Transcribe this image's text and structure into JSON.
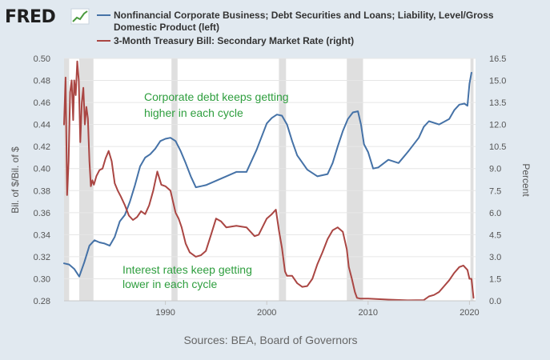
{
  "header": {
    "logo_text": "FRED",
    "logo_icon": "fred-chart-icon"
  },
  "chart_data": {
    "type": "line",
    "legend": [
      {
        "name_lines": [
          "Nonfinancial Corporate Business; Debt Securities and Loans; Liability, Level/Gross",
          "Domestic Product (left)"
        ],
        "color": "#4572a7",
        "axis": "left"
      },
      {
        "name_lines": [
          "3-Month Treasury Bill: Secondary Market Rate (right)"
        ],
        "color": "#aa4643",
        "axis": "right"
      }
    ],
    "ylabel_left": "Bil. of $/Bil. of $",
    "ylabel_right": "Percent",
    "ylim_left": [
      0.28,
      0.5
    ],
    "ylim_right": [
      0.0,
      16.5
    ],
    "xlim": [
      1980.0,
      2020.6
    ],
    "xticks": [
      1990,
      2000,
      2010,
      2020
    ],
    "yticks_left": [
      "0.28",
      "0.30",
      "0.32",
      "0.34",
      "0.36",
      "0.38",
      "0.40",
      "0.42",
      "0.44",
      "0.46",
      "0.48",
      "0.50"
    ],
    "yticks_right": [
      "0.0",
      "1.5",
      "3.0",
      "4.5",
      "6.0",
      "7.5",
      "9.0",
      "10.5",
      "12.0",
      "13.5",
      "15.0",
      "16.5"
    ],
    "recessions": [
      [
        1980.0,
        1980.5
      ],
      [
        1981.5,
        1982.9
      ],
      [
        1990.6,
        1991.2
      ],
      [
        2001.2,
        2001.9
      ],
      [
        2007.9,
        2009.5
      ],
      [
        2020.1,
        2020.4
      ]
    ],
    "series": [
      {
        "name": "Nonfinancial Corporate Business; Debt Securities and Loans; Liability, Level/Gross Domestic Product (left)",
        "axis": "left",
        "color": "#4572a7",
        "x": [
          1980.0,
          1980.5,
          1981.0,
          1981.5,
          1982.0,
          1982.5,
          1983.0,
          1983.5,
          1984.0,
          1984.5,
          1985.0,
          1985.5,
          1986.0,
          1986.5,
          1987.0,
          1987.5,
          1988.0,
          1988.5,
          1989.0,
          1989.5,
          1990.0,
          1990.5,
          1991.0,
          1991.5,
          1992.0,
          1992.5,
          1993.0,
          1993.5,
          1994.0,
          1995.0,
          1996.0,
          1997.0,
          1998.0,
          1999.0,
          2000.0,
          2000.5,
          2001.0,
          2001.5,
          2002.0,
          2002.5,
          2003.0,
          2004.0,
          2005.0,
          2006.0,
          2006.5,
          2007.0,
          2007.5,
          2008.0,
          2008.5,
          2009.0,
          2009.3,
          2009.6,
          2010.0,
          2010.5,
          2011.0,
          2012.0,
          2013.0,
          2014.0,
          2015.0,
          2015.5,
          2016.0,
          2017.0,
          2018.0,
          2018.5,
          2019.0,
          2019.5,
          2019.8,
          2020.0,
          2020.2
        ],
        "values": [
          0.314,
          0.313,
          0.309,
          0.302,
          0.315,
          0.33,
          0.335,
          0.333,
          0.332,
          0.33,
          0.338,
          0.352,
          0.358,
          0.37,
          0.385,
          0.402,
          0.41,
          0.413,
          0.418,
          0.425,
          0.427,
          0.428,
          0.425,
          0.416,
          0.405,
          0.393,
          0.383,
          0.384,
          0.385,
          0.389,
          0.393,
          0.397,
          0.397,
          0.417,
          0.441,
          0.446,
          0.449,
          0.448,
          0.44,
          0.425,
          0.412,
          0.399,
          0.393,
          0.395,
          0.405,
          0.42,
          0.434,
          0.445,
          0.451,
          0.452,
          0.44,
          0.422,
          0.415,
          0.4,
          0.401,
          0.408,
          0.405,
          0.416,
          0.428,
          0.438,
          0.443,
          0.44,
          0.445,
          0.453,
          0.458,
          0.459,
          0.457,
          0.477,
          0.487
        ]
      },
      {
        "name": "3-Month Treasury Bill: Secondary Market Rate (right)",
        "axis": "right",
        "color": "#aa4643",
        "x": [
          1980.0,
          1980.15,
          1980.3,
          1980.45,
          1980.6,
          1980.75,
          1980.9,
          1981.0,
          1981.15,
          1981.3,
          1981.45,
          1981.6,
          1981.75,
          1981.9,
          1982.05,
          1982.2,
          1982.35,
          1982.5,
          1982.65,
          1982.8,
          1982.95,
          1983.2,
          1983.5,
          1983.8,
          1984.1,
          1984.4,
          1984.7,
          1985.0,
          1985.3,
          1985.6,
          1986.0,
          1986.4,
          1986.8,
          1987.2,
          1987.6,
          1988.0,
          1988.4,
          1988.8,
          1989.2,
          1989.6,
          1990.0,
          1990.5,
          1991.0,
          1991.3,
          1991.6,
          1992.0,
          1992.4,
          1993.0,
          1993.5,
          1994.0,
          1994.5,
          1995.0,
          1995.5,
          1996.0,
          1997.0,
          1998.0,
          1998.8,
          1999.2,
          2000.0,
          2000.5,
          2000.9,
          2001.2,
          2001.5,
          2001.8,
          2002.0,
          2002.5,
          2003.0,
          2003.5,
          2004.0,
          2004.5,
          2005.0,
          2005.5,
          2006.0,
          2006.5,
          2007.0,
          2007.5,
          2007.9,
          2008.1,
          2008.4,
          2008.7,
          2008.9,
          2009.2,
          2010.0,
          2012.0,
          2014.0,
          2015.5,
          2016.0,
          2016.5,
          2017.0,
          2017.5,
          2018.0,
          2018.5,
          2019.0,
          2019.4,
          2019.8,
          2020.0,
          2020.2,
          2020.4
        ],
        "values": [
          12.0,
          15.2,
          7.2,
          9.5,
          14.2,
          15.0,
          12.3,
          15.0,
          14.0,
          16.3,
          15.0,
          10.8,
          13.5,
          14.5,
          12.0,
          13.2,
          12.4,
          9.5,
          7.8,
          8.2,
          7.9,
          8.5,
          8.9,
          9.0,
          9.7,
          10.2,
          9.5,
          8.0,
          7.5,
          7.1,
          6.5,
          5.8,
          5.5,
          5.7,
          6.1,
          5.9,
          6.5,
          7.5,
          8.8,
          7.9,
          7.8,
          7.5,
          6.0,
          5.6,
          5.0,
          3.9,
          3.3,
          3.0,
          3.1,
          3.4,
          4.5,
          5.6,
          5.4,
          5.0,
          5.1,
          5.0,
          4.4,
          4.5,
          5.6,
          5.9,
          6.2,
          4.8,
          3.6,
          2.0,
          1.7,
          1.7,
          1.2,
          0.95,
          1.0,
          1.5,
          2.5,
          3.3,
          4.2,
          4.8,
          5.0,
          4.7,
          3.5,
          2.3,
          1.5,
          0.6,
          0.2,
          0.15,
          0.15,
          0.08,
          0.03,
          0.05,
          0.3,
          0.4,
          0.6,
          1.0,
          1.4,
          1.9,
          2.3,
          2.4,
          2.1,
          1.5,
          1.5,
          0.2
        ]
      }
    ],
    "annotations": [
      {
        "lines": [
          "Corporate debt keeps getting",
          "higher in each cycle"
        ],
        "anchor": "upper-middle"
      },
      {
        "lines": [
          "Interest rates keep getting",
          "lower in each cycle"
        ],
        "anchor": "lower-left"
      }
    ]
  },
  "footer": {
    "source": "Sources: BEA, Board of Governors"
  }
}
